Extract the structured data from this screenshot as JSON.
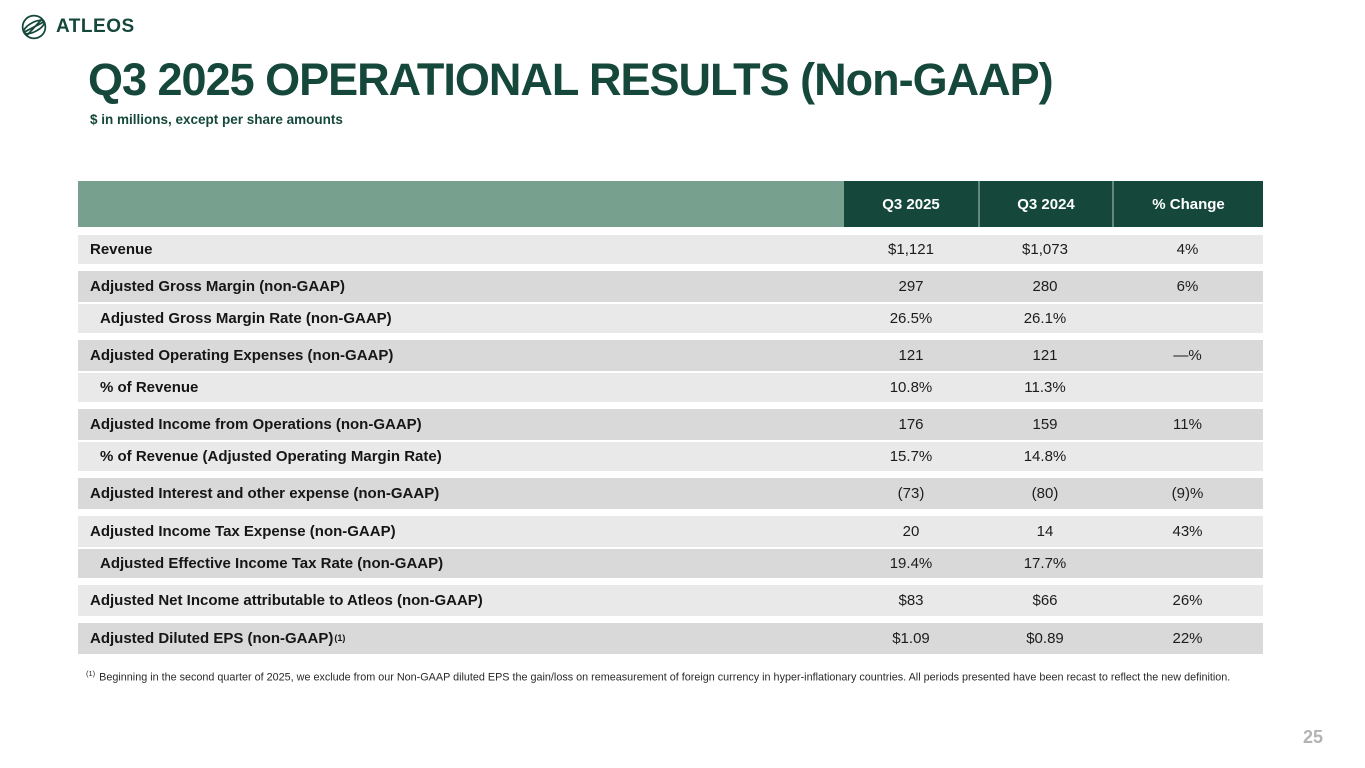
{
  "brand": {
    "name": "ATLEOS",
    "logo_icon": "globe-icon"
  },
  "slide": {
    "title": "Q3 2025 OPERATIONAL RESULTS (Non-GAAP)",
    "subtitle": "$ in millions, except per share amounts",
    "page_number": "25",
    "footnote_marker": "(1)",
    "footnote_text": "Beginning in the second quarter of 2025, we exclude from our Non-GAAP diluted EPS the gain/loss on remeasurement of foreign currency in hyper-inflationary countries. All periods presented have been recast to reflect the new definition."
  },
  "colors": {
    "dark_green": "#15483B",
    "sage_green": "#78A08E",
    "row_light": "#E9E9E9",
    "row_dark": "#D9D9D9"
  },
  "table": {
    "columns": [
      "Q3 2025",
      "Q3 2024",
      "% Change"
    ],
    "rows": [
      {
        "label": "Revenue",
        "values": [
          "$1,121",
          "$1,073",
          "4%"
        ],
        "shade": "light",
        "indent": false,
        "gap_before": false
      },
      {
        "label": "Adjusted Gross Margin (non-GAAP)",
        "values": [
          "297",
          "280",
          "6%"
        ],
        "shade": "dark",
        "indent": false,
        "gap_before": true
      },
      {
        "label": "Adjusted Gross Margin Rate (non-GAAP)",
        "values": [
          "26.5%",
          "26.1%",
          ""
        ],
        "shade": "light",
        "indent": true,
        "gap_before": false
      },
      {
        "label": "Adjusted Operating Expenses (non-GAAP)",
        "values": [
          "121",
          "121",
          "—%"
        ],
        "shade": "dark",
        "indent": false,
        "gap_before": true
      },
      {
        "label": "% of Revenue",
        "values": [
          "10.8%",
          "11.3%",
          ""
        ],
        "shade": "light",
        "indent": true,
        "gap_before": false
      },
      {
        "label": "Adjusted Income from Operations (non-GAAP)",
        "values": [
          "176",
          "159",
          "11%"
        ],
        "shade": "dark",
        "indent": false,
        "gap_before": true
      },
      {
        "label": "% of Revenue (Adjusted Operating Margin Rate)",
        "values": [
          "15.7%",
          "14.8%",
          ""
        ],
        "shade": "light",
        "indent": true,
        "gap_before": false
      },
      {
        "label": "Adjusted Interest and other expense (non-GAAP)",
        "values": [
          "(73)",
          "(80)",
          "(9)%"
        ],
        "shade": "dark",
        "indent": false,
        "gap_before": true
      },
      {
        "label": "Adjusted Income Tax Expense (non-GAAP)",
        "values": [
          "20",
          "14",
          "43%"
        ],
        "shade": "light",
        "indent": false,
        "gap_before": true
      },
      {
        "label": "Adjusted Effective Income Tax Rate (non-GAAP)",
        "values": [
          "19.4%",
          "17.7%",
          ""
        ],
        "shade": "dark",
        "indent": true,
        "gap_before": false
      },
      {
        "label": "Adjusted Net Income attributable to Atleos (non-GAAP)",
        "values": [
          "$83",
          "$66",
          "26%"
        ],
        "shade": "light",
        "indent": false,
        "gap_before": true
      },
      {
        "label": "Adjusted Diluted EPS (non-GAAP)",
        "sup": "(1)",
        "values": [
          "$1.09",
          "$0.89",
          "22%"
        ],
        "shade": "dark",
        "indent": false,
        "gap_before": true
      }
    ]
  }
}
